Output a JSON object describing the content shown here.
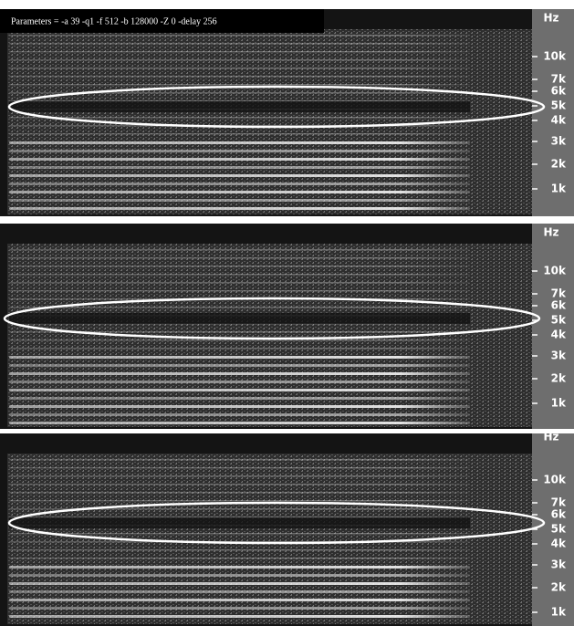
{
  "parameters": "Parameters = -a 39 -q1 -f 512 -b 128000 -Z 0 -delay 256",
  "panels": [
    {
      "unit": "Hz",
      "ticks": [
        "10k",
        "7k",
        "6k",
        "5k",
        "4k",
        "3k",
        "2k",
        "1k"
      ]
    },
    {
      "unit": "Hz",
      "ticks": [
        "10k",
        "7k",
        "6k",
        "5k",
        "4k",
        "3k",
        "2k",
        "1k"
      ]
    },
    {
      "unit": "Hz",
      "ticks": [
        "10k",
        "7k",
        "6k",
        "5k",
        "4k",
        "3k",
        "2k",
        "1k"
      ]
    }
  ]
}
